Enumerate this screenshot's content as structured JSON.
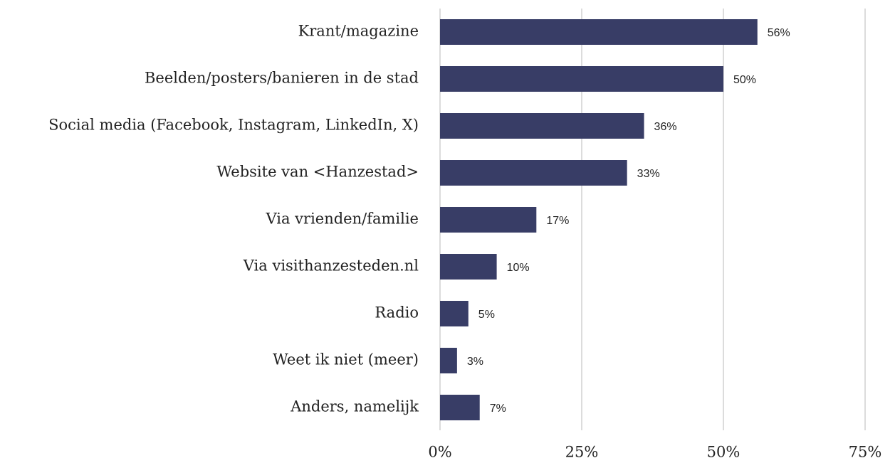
{
  "chart_data": {
    "type": "bar",
    "orientation": "horizontal",
    "categories": [
      "Krant/magazine",
      "Beelden/posters/banieren in de stad",
      "Social media (Facebook, Instagram, LinkedIn, X)",
      "Website van <Hanzestad>",
      "Via vrienden/familie",
      "Via visithanzesteden.nl",
      "Radio",
      "Weet ik niet (meer)",
      "Anders, namelijk"
    ],
    "values": [
      56,
      50,
      36,
      33,
      17,
      10,
      5,
      3,
      7
    ],
    "value_labels": [
      "56%",
      "50%",
      "36%",
      "33%",
      "17%",
      "10%",
      "5%",
      "3%",
      "7%"
    ],
    "color": "#383d66",
    "xlim": [
      0,
      75
    ],
    "xticks": [
      {
        "value": 0,
        "label": "0%"
      },
      {
        "value": 25,
        "label": "25%"
      },
      {
        "value": 50,
        "label": "50%"
      },
      {
        "value": 75,
        "label": "75%"
      }
    ],
    "grid": true
  }
}
